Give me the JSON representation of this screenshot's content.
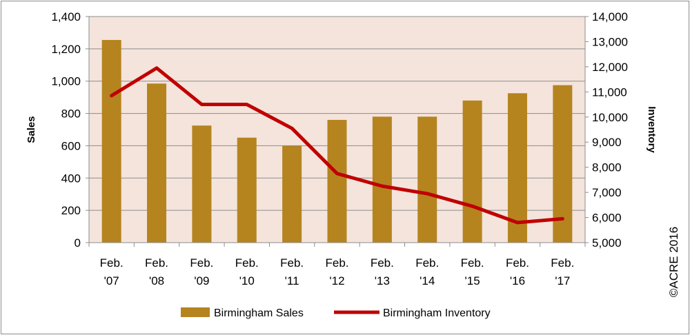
{
  "chart_data": {
    "type": "bar",
    "categories": [
      [
        "Feb.",
        "'07"
      ],
      [
        "Feb.",
        "'08"
      ],
      [
        "Feb.",
        "'09"
      ],
      [
        "Feb.",
        "'10"
      ],
      [
        "Feb.",
        "'11"
      ],
      [
        "Feb.",
        "'12"
      ],
      [
        "Feb.",
        "'13"
      ],
      [
        "Feb.",
        "'14"
      ],
      [
        "Feb.",
        "'15"
      ],
      [
        "Feb.",
        "'16"
      ],
      [
        "Feb.",
        "'17"
      ]
    ],
    "series": [
      {
        "name": "Birmingham Sales",
        "type": "bar",
        "axis": "left",
        "color": "#B5841F",
        "values": [
          1255,
          985,
          725,
          650,
          600,
          760,
          780,
          780,
          880,
          925,
          975
        ]
      },
      {
        "name": "Birmingham Inventory",
        "type": "line",
        "axis": "right",
        "color": "#C00000",
        "values": [
          10850,
          11950,
          10500,
          10500,
          9550,
          7750,
          7250,
          6950,
          6450,
          5800,
          5950
        ]
      }
    ],
    "ylabel": "Sales",
    "y2label": "Inventory",
    "ylim": [
      0,
      1400
    ],
    "y2lim": [
      5000,
      14000
    ],
    "yticks": [
      "0",
      "200",
      "400",
      "600",
      "800",
      "1,000",
      "1,200",
      "1,400"
    ],
    "y2ticks": [
      "5,000",
      "6,000",
      "7,000",
      "8,000",
      "9,000",
      "10,000",
      "11,000",
      "12,000",
      "13,000",
      "14,000"
    ],
    "grid": true,
    "legend_position": "bottom",
    "plot_background": "#F4E4DC"
  },
  "credit": "©ACRE 2016"
}
